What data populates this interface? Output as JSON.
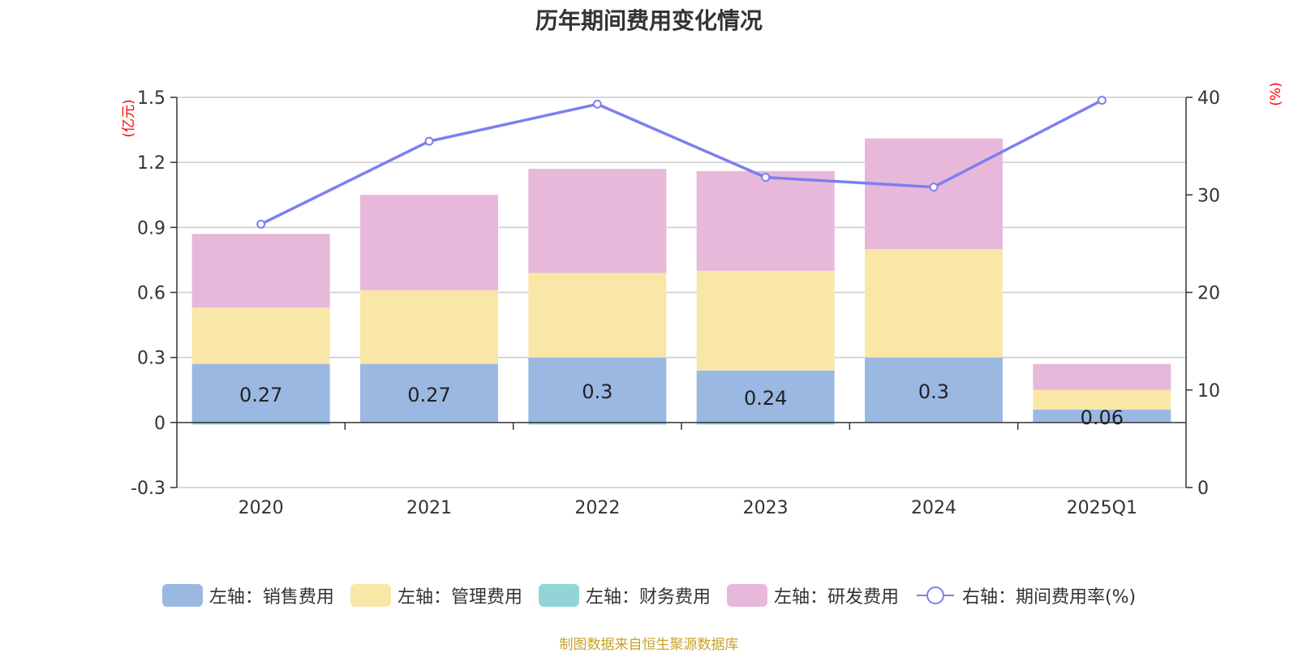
{
  "title": "历年期间费用变化情况",
  "source_note": "制图数据来自恒生聚源数据库",
  "colors": {
    "sales": "#9bb8e3",
    "admin": "#f9e7a8",
    "finance": "#93d5d6",
    "rd": "#e7b8d9",
    "rate": "#7b7ff0"
  },
  "legend": [
    {
      "key": "sales",
      "label": "左轴：销售费用",
      "kind": "bar"
    },
    {
      "key": "admin",
      "label": "左轴：管理费用",
      "kind": "bar"
    },
    {
      "key": "finance",
      "label": "左轴：财务费用",
      "kind": "bar"
    },
    {
      "key": "rd",
      "label": "左轴：研发费用",
      "kind": "bar"
    },
    {
      "key": "rate",
      "label": "右轴：期间费用率(%)",
      "kind": "line"
    }
  ],
  "chart_data": {
    "type": "bar",
    "title": "历年期间费用变化情况",
    "categories": [
      "2020",
      "2021",
      "2022",
      "2023",
      "2024",
      "2025Q1"
    ],
    "y_left": {
      "unit_label": "(亿元)",
      "ylim": [
        -0.3,
        1.5
      ],
      "ticks": [
        "-0.3",
        "0",
        "0.3",
        "0.6",
        "0.9",
        "1.2",
        "1.5"
      ]
    },
    "y_right": {
      "unit_label": "(%)",
      "ylim": [
        0,
        40
      ],
      "ticks": [
        "0",
        "10",
        "20",
        "30",
        "40"
      ]
    },
    "grid": true,
    "legend_position": "bottom",
    "series": [
      {
        "name": "左轴：销售费用",
        "key": "sales",
        "type": "bar",
        "axis": "left",
        "stack": "total",
        "values": [
          0.27,
          0.27,
          0.3,
          0.24,
          0.3,
          0.06
        ],
        "data_labels": [
          "0.27",
          "0.27",
          "0.3",
          "0.24",
          "0.3",
          "0.06"
        ]
      },
      {
        "name": "左轴：管理费用",
        "key": "admin",
        "type": "bar",
        "axis": "left",
        "stack": "total",
        "values": [
          0.26,
          0.34,
          0.39,
          0.46,
          0.5,
          0.09
        ]
      },
      {
        "name": "左轴：财务费用",
        "key": "finance",
        "type": "bar",
        "axis": "left",
        "stack": "total",
        "values": [
          -0.01,
          0.0,
          -0.01,
          -0.01,
          0.0,
          0.0
        ]
      },
      {
        "name": "左轴：研发费用",
        "key": "rd",
        "type": "bar",
        "axis": "left",
        "stack": "total",
        "values": [
          0.34,
          0.44,
          0.48,
          0.46,
          0.51,
          0.12
        ]
      },
      {
        "name": "右轴：期间费用率(%)",
        "key": "rate",
        "type": "line",
        "axis": "right",
        "values": [
          27.0,
          35.5,
          39.3,
          31.8,
          30.8,
          39.7
        ]
      }
    ]
  }
}
